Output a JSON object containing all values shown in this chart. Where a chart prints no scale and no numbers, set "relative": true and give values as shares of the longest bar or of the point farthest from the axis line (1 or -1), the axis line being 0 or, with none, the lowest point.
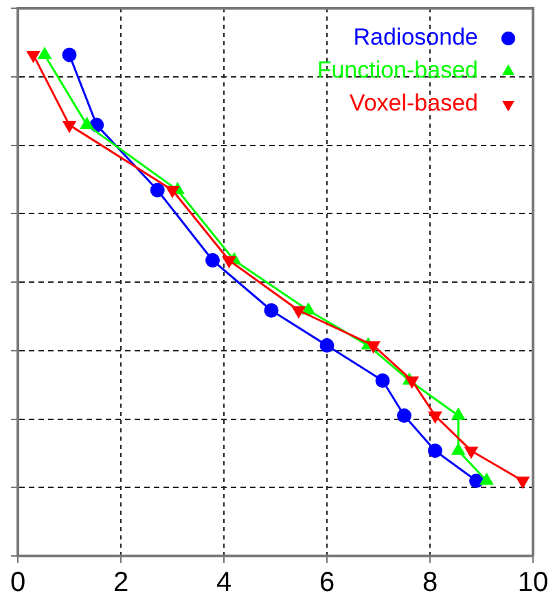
{
  "chart_data": {
    "type": "line",
    "relative": true,
    "xlim": [
      0,
      10
    ],
    "xticks": [
      0,
      2,
      4,
      6,
      8,
      10
    ],
    "grid": true,
    "legend": "top right",
    "series": [
      {
        "name": "Radiosonde",
        "color": "#0000ff",
        "marker": "circle",
        "x": [
          1.0,
          1.53,
          2.71,
          3.78,
          4.92,
          6.0,
          7.08,
          7.5,
          8.1,
          8.9
        ],
        "values": [
          1,
          0.86,
          0.73,
          0.59,
          0.49,
          0.42,
          0.35,
          0.28,
          0.21,
          0.15
        ]
      },
      {
        "name": "Function-based",
        "color": "#00ff00",
        "marker": "triangle",
        "x": [
          0.52,
          1.34,
          3.1,
          4.2,
          5.64,
          6.8,
          7.6,
          8.55,
          8.55,
          9.1
        ],
        "values": [
          1,
          0.86,
          0.73,
          0.59,
          0.49,
          0.42,
          0.35,
          0.28,
          0.21,
          0.15
        ]
      },
      {
        "name": "Voxel-based",
        "color": "#ff0000",
        "marker": "triangle_down",
        "x": [
          0.3,
          1.0,
          3.0,
          4.1,
          5.45,
          6.9,
          7.65,
          8.1,
          8.8,
          9.8
        ],
        "values": [
          1,
          0.86,
          0.73,
          0.59,
          0.49,
          0.42,
          0.35,
          0.28,
          0.21,
          0.15
        ]
      }
    ]
  }
}
